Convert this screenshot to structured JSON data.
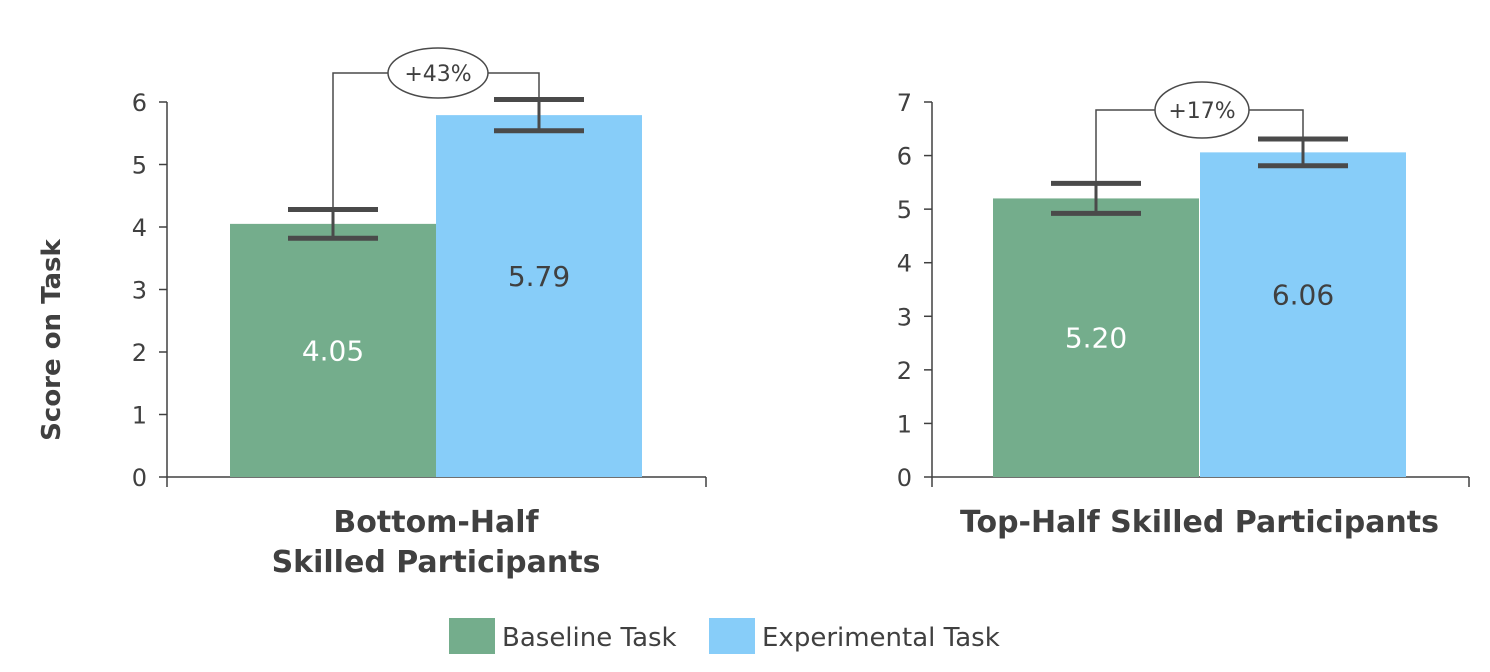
{
  "colors": {
    "baseline": "#74ad8c",
    "experimental": "#87cdf9",
    "axis": "#404040",
    "errorbar": "#4a4a4a"
  },
  "chart_data": [
    {
      "type": "bar",
      "xlabel": [
        "Bottom-Half",
        "Skilled Participants"
      ],
      "ylabel": "Score on Task",
      "ylim": [
        0,
        6
      ],
      "yticks": [
        "0",
        "1",
        "2",
        "3",
        "4",
        "5",
        "6"
      ],
      "series": [
        {
          "name": "Baseline Task",
          "values": [
            4.05
          ],
          "error": [
            0.23
          ],
          "label": "4.05"
        },
        {
          "name": "Experimental Task",
          "values": [
            5.79
          ],
          "error": [
            0.25
          ],
          "label": "5.79"
        }
      ],
      "annotation": "+43%"
    },
    {
      "type": "bar",
      "xlabel": [
        "Top-Half Skilled Participants"
      ],
      "ylabel": "",
      "ylim": [
        0,
        7
      ],
      "yticks": [
        "0",
        "1",
        "2",
        "3",
        "4",
        "5",
        "6",
        "7"
      ],
      "series": [
        {
          "name": "Baseline Task",
          "values": [
            5.2
          ],
          "error": [
            0.28
          ],
          "label": "5.20"
        },
        {
          "name": "Experimental Task",
          "values": [
            6.06
          ],
          "error": [
            0.25
          ],
          "label": "6.06"
        }
      ],
      "annotation": "+17%"
    }
  ],
  "legend": [
    {
      "name": "Baseline Task",
      "color": "#74ad8c"
    },
    {
      "name": "Experimental Task",
      "color": "#87cdf9"
    }
  ]
}
